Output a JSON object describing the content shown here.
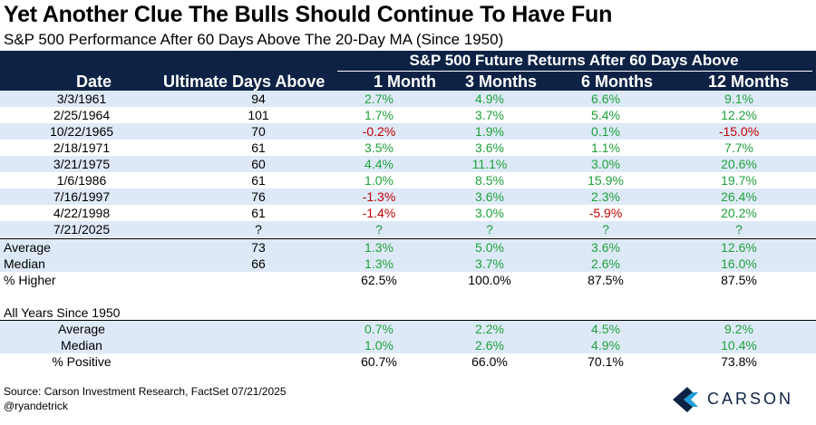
{
  "title": "Yet Another Clue The Bulls Should Continue To Have Fun",
  "subtitle": "S&P 500 Performance After 60 Days Above The 20-Day MA (Since 1950)",
  "chart_data": {
    "type": "table",
    "super_header": "S&P 500 Future Returns After 60 Days Above",
    "columns": [
      "Date",
      "Ultimate Days Above",
      "1 Month",
      "3 Months",
      "6 Months",
      "12 Months"
    ],
    "rows": [
      {
        "date": "3/3/1961",
        "days": "94",
        "m1": "2.7%",
        "m3": "4.9%",
        "m6": "6.6%",
        "m12": "9.1%"
      },
      {
        "date": "2/25/1964",
        "days": "101",
        "m1": "1.7%",
        "m3": "3.7%",
        "m6": "5.4%",
        "m12": "12.2%"
      },
      {
        "date": "10/22/1965",
        "days": "70",
        "m1": "-0.2%",
        "m3": "1.9%",
        "m6": "0.1%",
        "m12": "-15.0%"
      },
      {
        "date": "2/18/1971",
        "days": "61",
        "m1": "3.5%",
        "m3": "3.6%",
        "m6": "1.1%",
        "m12": "7.7%"
      },
      {
        "date": "3/21/1975",
        "days": "60",
        "m1": "4.4%",
        "m3": "11.1%",
        "m6": "3.0%",
        "m12": "20.6%"
      },
      {
        "date": "1/6/1986",
        "days": "61",
        "m1": "1.0%",
        "m3": "8.5%",
        "m6": "15.9%",
        "m12": "19.7%"
      },
      {
        "date": "7/16/1997",
        "days": "76",
        "m1": "-1.3%",
        "m3": "3.6%",
        "m6": "2.3%",
        "m12": "26.4%"
      },
      {
        "date": "4/22/1998",
        "days": "61",
        "m1": "-1.4%",
        "m3": "3.0%",
        "m6": "-5.9%",
        "m12": "20.2%"
      },
      {
        "date": "7/21/2025",
        "days": "?",
        "m1": "?",
        "m3": "?",
        "m6": "?",
        "m12": "?"
      }
    ],
    "summary": [
      {
        "label": "Average",
        "days": "73",
        "m1": "1.3%",
        "m3": "5.0%",
        "m6": "3.6%",
        "m12": "12.6%"
      },
      {
        "label": "Median",
        "days": "66",
        "m1": "1.3%",
        "m3": "3.7%",
        "m6": "2.6%",
        "m12": "16.0%"
      },
      {
        "label": "% Higher",
        "days": "",
        "m1": "62.5%",
        "m3": "100.0%",
        "m6": "87.5%",
        "m12": "87.5%"
      }
    ],
    "all_years_label": "All Years Since 1950",
    "all_years": [
      {
        "label": "Average",
        "m1": "0.7%",
        "m3": "2.2%",
        "m6": "4.5%",
        "m12": "9.2%"
      },
      {
        "label": "Median",
        "m1": "1.0%",
        "m3": "2.6%",
        "m6": "4.9%",
        "m12": "10.4%"
      },
      {
        "label": "% Positive",
        "m1": "60.7%",
        "m3": "66.0%",
        "m6": "70.1%",
        "m12": "73.8%"
      }
    ],
    "colors": {
      "header_bg": "#0d2244",
      "band": "#dde9f7",
      "positive": "#1fa23a",
      "negative": "#c00000"
    }
  },
  "footer": {
    "source": "Source: Carson Investment Research, FactSet 07/21/2025",
    "handle": "@ryandetrick"
  },
  "logo": {
    "text": "CARSON",
    "icon": "carson-chevron-icon"
  }
}
